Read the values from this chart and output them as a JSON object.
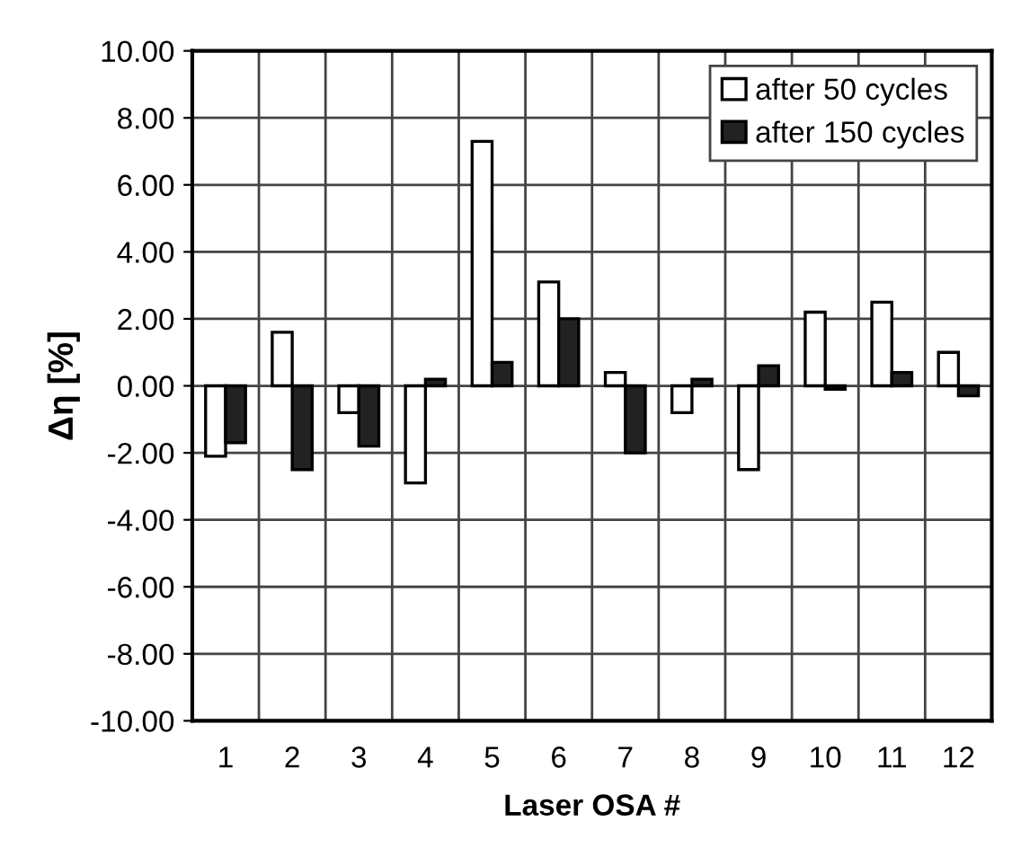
{
  "chart_data": {
    "type": "bar",
    "xlabel": "Laser OSA #",
    "ylabel": "Δη [%]",
    "categories": [
      "1",
      "2",
      "3",
      "4",
      "5",
      "6",
      "7",
      "8",
      "9",
      "10",
      "11",
      "12"
    ],
    "series": [
      {
        "name": "after 50 cycles",
        "color": "#ffffff",
        "values": [
          -2.1,
          1.6,
          -0.8,
          -2.9,
          7.3,
          3.1,
          0.4,
          -0.8,
          -2.5,
          2.2,
          2.5,
          1.0
        ]
      },
      {
        "name": "after 150 cycles",
        "color": "#222222",
        "values": [
          -1.7,
          -2.5,
          -1.8,
          0.2,
          0.7,
          2.0,
          -2.0,
          0.2,
          0.6,
          -0.1,
          0.4,
          -0.3
        ]
      }
    ],
    "ylim": [
      -10,
      10
    ],
    "yticks": [
      {
        "value": -10,
        "label": "-10.00"
      },
      {
        "value": -8,
        "label": "-8.00"
      },
      {
        "value": -6,
        "label": "-6.00"
      },
      {
        "value": -4,
        "label": "-4.00"
      },
      {
        "value": -2,
        "label": "-2.00"
      },
      {
        "value": 0,
        "label": "0.00"
      },
      {
        "value": 2,
        "label": "2.00"
      },
      {
        "value": 4,
        "label": "4.00"
      },
      {
        "value": 6,
        "label": "6.00"
      },
      {
        "value": 8,
        "label": "8.00"
      },
      {
        "value": 10,
        "label": "10.00"
      }
    ],
    "grid": true,
    "legend": "top right"
  }
}
